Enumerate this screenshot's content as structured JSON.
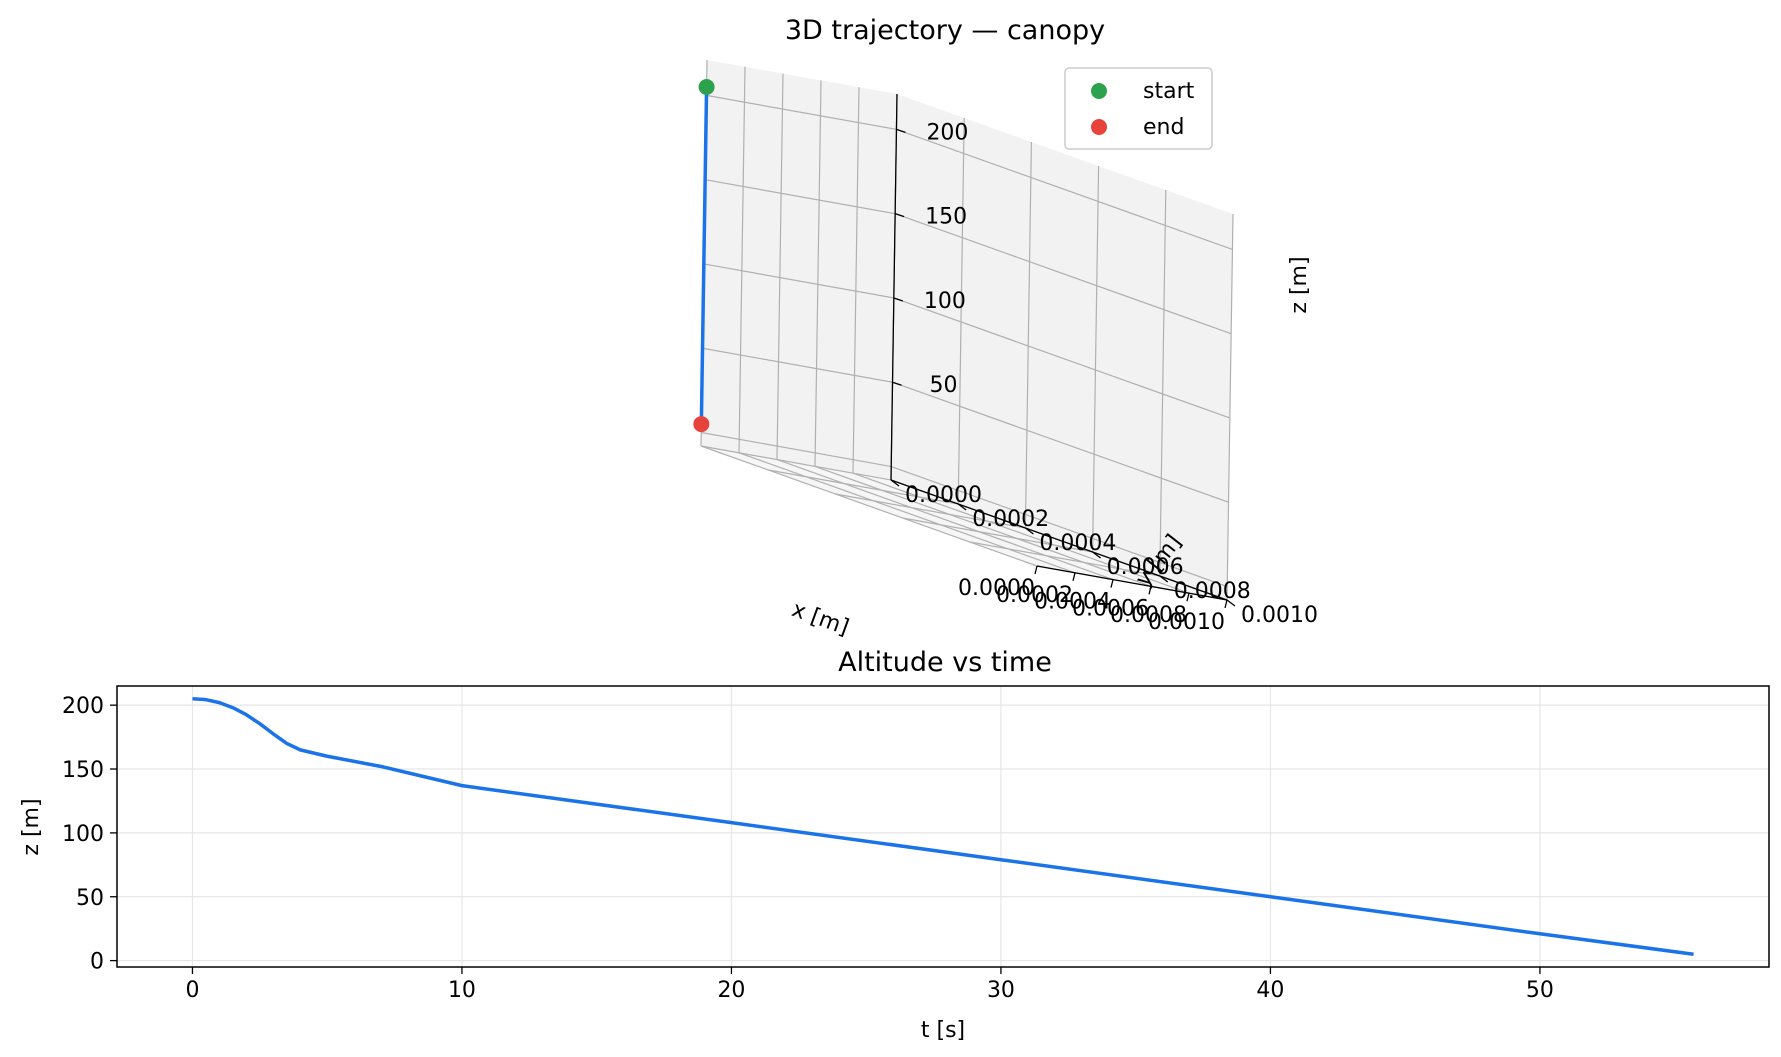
{
  "chart_data": [
    {
      "type": "line",
      "title": "3D trajectory — canopy",
      "xlabel": "x [m]",
      "ylabel": "y [m]",
      "zlabel": "z [m]",
      "xlim": [
        0,
        0.001
      ],
      "ylim": [
        0,
        0.001
      ],
      "zlim": [
        5,
        205
      ],
      "x_ticks": [
        "0.0000",
        "0.0002",
        "0.0004",
        "0.0006",
        "0.0008",
        "0.0010"
      ],
      "y_ticks": [
        "0.0000",
        "0.0002",
        "0.0004",
        "0.0006",
        "0.0008",
        "0.0010"
      ],
      "z_ticks": [
        "50",
        "100",
        "150",
        "200"
      ],
      "grid": true,
      "legend_position": "top-right",
      "legend": [
        {
          "label": "start",
          "color": "#2ca24c"
        },
        {
          "label": "end",
          "color": "#e8433a"
        }
      ],
      "series": [
        {
          "color": "#1a73e8",
          "x": [
            0,
            0
          ],
          "y": [
            0,
            0
          ],
          "z": [
            205,
            5
          ]
        }
      ],
      "start": {
        "x": 0,
        "y": 0,
        "z": 205
      },
      "end": {
        "x": 0,
        "y": 0,
        "z": 5
      }
    },
    {
      "type": "line",
      "title": "Altitude vs time",
      "xlabel": "t [s]",
      "ylabel": "z [m]",
      "xlim": [
        -2.8,
        58.5
      ],
      "ylim": [
        -5,
        215
      ],
      "x_ticks": [
        "0",
        "10",
        "20",
        "30",
        "40",
        "50"
      ],
      "y_ticks": [
        "0",
        "50",
        "100",
        "150",
        "200"
      ],
      "grid": true,
      "series": [
        {
          "color": "#1a73e8",
          "x": [
            0,
            0.5,
            1,
            1.5,
            2,
            2.5,
            3,
            3.5,
            4,
            5,
            7,
            10,
            20,
            30,
            40,
            50,
            55.7
          ],
          "y": [
            205,
            204.3,
            202,
            198,
            192.5,
            185.5,
            177.5,
            170,
            165,
            160,
            152,
            137,
            108,
            79,
            50,
            21,
            5
          ]
        }
      ]
    }
  ]
}
